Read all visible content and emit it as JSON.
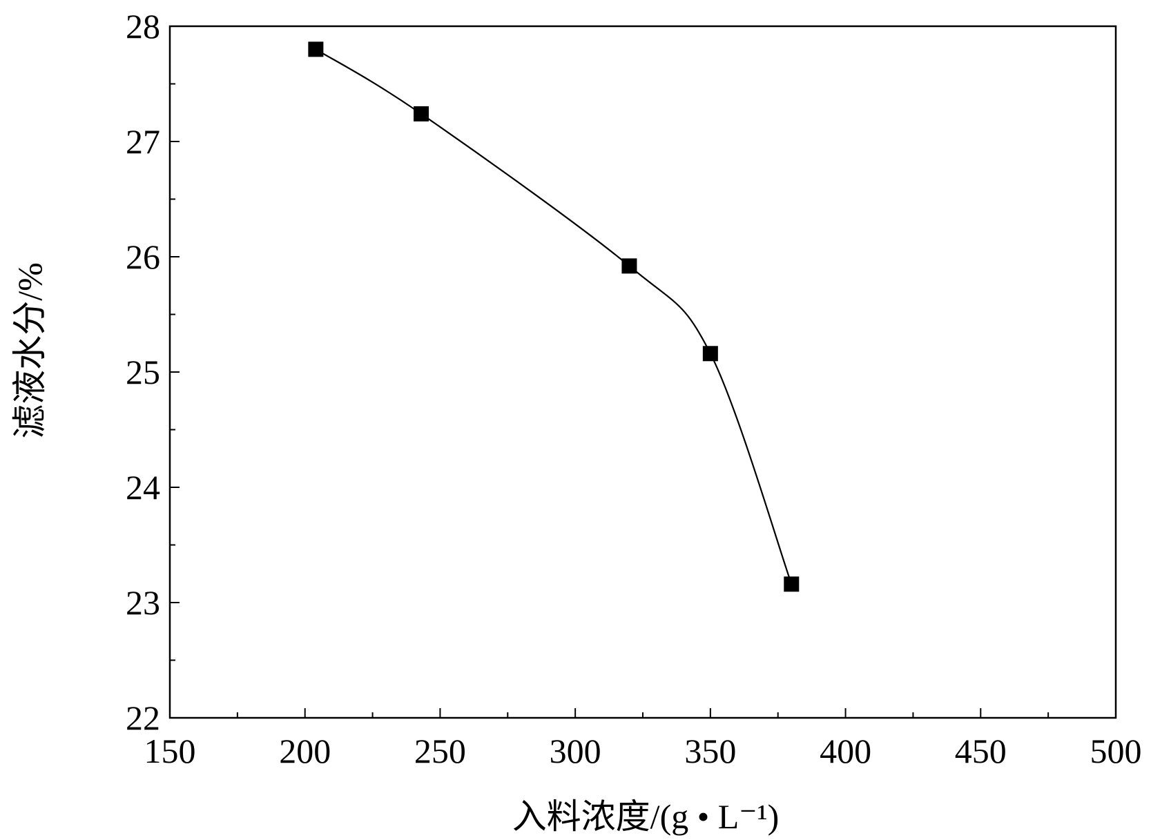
{
  "chart_data": {
    "type": "line",
    "title": "",
    "xlabel": "入料浓度/(g • L⁻¹)",
    "ylabel": "滤液水分/%",
    "xlim": [
      150,
      500
    ],
    "ylim": [
      22,
      28
    ],
    "x_ticks": [
      150,
      200,
      250,
      300,
      350,
      400,
      450,
      500
    ],
    "y_ticks": [
      22,
      23,
      24,
      25,
      26,
      27,
      28
    ],
    "x_minor_step": 25,
    "y_minor_step": 0.5,
    "grid": false,
    "legend": "none",
    "marker": "square",
    "line_color": "#000000",
    "marker_color": "#000000",
    "series": [
      {
        "x": [
          204,
          243,
          320,
          350,
          380
        ],
        "y": [
          27.8,
          27.24,
          25.92,
          25.16,
          23.16
        ]
      }
    ]
  }
}
